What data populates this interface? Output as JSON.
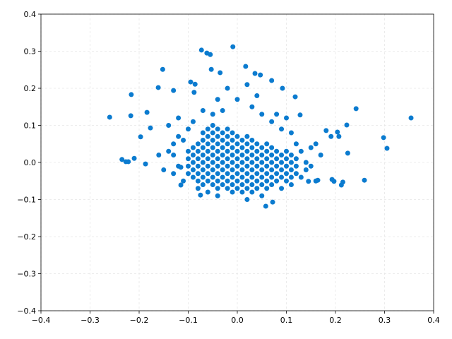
{
  "chart_data": {
    "type": "scatter",
    "color": "#0b7bcf",
    "grid": true,
    "xlim": [
      -0.4,
      0.4
    ],
    "ylim": [
      -0.4,
      0.4
    ],
    "xticks": [
      {
        "value": -0.4,
        "label": "−0.4"
      },
      {
        "value": -0.3,
        "label": "−0.3"
      },
      {
        "value": -0.2,
        "label": "−0.2"
      },
      {
        "value": -0.1,
        "label": "−0.1"
      },
      {
        "value": 0,
        "label": "0.0"
      },
      0.1,
      0.2,
      0.3,
      0.4
    ],
    "yticks": [
      {
        "value": -0.4,
        "label": "−0.4"
      },
      {
        "value": -0.3,
        "label": "−0.3"
      },
      {
        "value": -0.2,
        "label": "−0.2"
      },
      {
        "value": -0.1,
        "label": "−0.1"
      },
      {
        "value": 0,
        "label": "0.0"
      },
      0.1,
      0.2,
      0.3,
      0.4
    ],
    "x": [
      -0.1,
      -0.1,
      -0.1,
      -0.1,
      -0.09,
      -0.09,
      -0.09,
      -0.09,
      -0.09,
      -0.08,
      -0.08,
      -0.08,
      -0.08,
      -0.08,
      -0.08,
      -0.07,
      -0.07,
      -0.07,
      -0.07,
      -0.07,
      -0.07,
      -0.07,
      -0.07,
      -0.06,
      -0.06,
      -0.06,
      -0.06,
      -0.06,
      -0.06,
      -0.06,
      -0.06,
      -0.05,
      -0.05,
      -0.05,
      -0.05,
      -0.05,
      -0.05,
      -0.05,
      -0.05,
      -0.05,
      -0.04,
      -0.04,
      -0.04,
      -0.04,
      -0.04,
      -0.04,
      -0.04,
      -0.04,
      -0.04,
      -0.03,
      -0.03,
      -0.03,
      -0.03,
      -0.03,
      -0.03,
      -0.03,
      -0.03,
      -0.02,
      -0.02,
      -0.02,
      -0.02,
      -0.02,
      -0.02,
      -0.02,
      -0.02,
      -0.02,
      -0.01,
      -0.01,
      -0.01,
      -0.01,
      -0.01,
      -0.01,
      -0.01,
      -0.01,
      -0.01,
      0,
      0,
      0,
      0,
      0,
      0,
      0,
      0,
      0.01,
      0.01,
      0.01,
      0.01,
      0.01,
      0.01,
      0.01,
      0.01,
      0.02,
      0.02,
      0.02,
      0.02,
      0.02,
      0.02,
      0.02,
      0.02,
      0.03,
      0.03,
      0.03,
      0.03,
      0.03,
      0.03,
      0.03,
      0.03,
      0.04,
      0.04,
      0.04,
      0.04,
      0.04,
      0.04,
      0.04,
      0.05,
      0.05,
      0.05,
      0.05,
      0.05,
      0.05,
      0.06,
      0.06,
      0.06,
      0.06,
      0.06,
      0.06,
      0.06,
      0.07,
      0.07,
      0.07,
      0.07,
      0.07,
      0.07,
      0.08,
      0.08,
      0.08,
      0.08,
      0.08,
      0.09,
      0.09,
      0.09,
      0.09,
      0.1,
      0.1,
      0.1,
      0.1,
      0.1,
      0.11,
      0.11,
      0.11,
      0.11,
      0.12,
      0.12,
      0.12,
      -0.13,
      -0.12,
      -0.14,
      -0.15,
      -0.11,
      -0.12,
      -0.13,
      -0.16,
      -0.11,
      -0.13,
      0.13,
      0.14,
      0.15,
      0.16,
      0.14,
      0.13,
      0.15,
      0.17,
      0.12,
      0.11,
      0.09,
      0.1,
      0.07,
      0.05,
      0.03,
      0,
      -0.02,
      0.02,
      -0.04,
      -0.07,
      -0.09,
      -0.1,
      -0.04,
      0.02,
      0.05,
      0.09,
      -0.08,
      0.11,
      -0.06,
      0.08,
      -0.05,
      0.04,
      -0.03,
      0.16,
      -0.14,
      -0.12,
      -0.26,
      0.354,
      -0.009,
      -0.073,
      -0.062,
      -0.055,
      -0.152,
      -0.053,
      0.017,
      0.036,
      0.047,
      -0.035,
      0.07,
      -0.095,
      -0.086,
      -0.161,
      -0.13,
      -0.088,
      -0.216,
      0.092,
      0.118,
      0.242,
      0.298,
      0.305,
      0.259,
      -0.217,
      -0.184,
      0.128,
      0.223,
      0.204,
      0.207,
      0.181,
      0.191,
      0.225,
      -0.235,
      -0.227,
      -0.222,
      -0.21,
      -0.197,
      -0.187,
      -0.177,
      0.058,
      0.072,
      -0.075,
      0.212,
      0.215,
      0.197,
      0.193,
      0.164,
      0.145,
      -0.115,
      -0.115
    ],
    "values": [
      -0.03,
      -0.01,
      0.01,
      0.03,
      -0.04,
      -0.02,
      0,
      0.02,
      0.04,
      -0.05,
      -0.03,
      -0.01,
      0.01,
      0.03,
      0.05,
      -0.06,
      -0.04,
      -0.02,
      0,
      0.02,
      0.04,
      0.06,
      0.08,
      -0.05,
      -0.03,
      -0.01,
      0.01,
      0.03,
      0.05,
      0.07,
      0.09,
      -0.06,
      -0.04,
      -0.02,
      0,
      0.02,
      0.04,
      0.06,
      0.08,
      0.1,
      -0.07,
      -0.05,
      -0.03,
      -0.01,
      0.01,
      0.03,
      0.05,
      0.07,
      0.09,
      -0.06,
      -0.04,
      -0.02,
      0,
      0.02,
      0.04,
      0.06,
      0.08,
      -0.07,
      -0.05,
      -0.03,
      -0.01,
      0.01,
      0.03,
      0.05,
      0.07,
      0.09,
      -0.08,
      -0.06,
      -0.04,
      -0.02,
      0,
      0.02,
      0.04,
      0.06,
      0.08,
      -0.07,
      -0.05,
      -0.03,
      -0.01,
      0.01,
      0.03,
      0.05,
      0.07,
      -0.08,
      -0.06,
      -0.04,
      -0.02,
      0,
      0.02,
      0.04,
      0.06,
      -0.07,
      -0.05,
      -0.03,
      -0.01,
      0.01,
      0.03,
      0.05,
      0.07,
      -0.08,
      -0.06,
      -0.04,
      -0.02,
      0,
      0.02,
      0.04,
      0.06,
      -0.07,
      -0.05,
      -0.03,
      -0.01,
      0.01,
      0.03,
      0.05,
      -0.06,
      -0.04,
      -0.02,
      0,
      0.02,
      0.04,
      -0.07,
      -0.05,
      -0.03,
      -0.01,
      0.01,
      0.03,
      0.05,
      -0.06,
      -0.04,
      -0.02,
      0,
      0.02,
      0.04,
      -0.05,
      -0.03,
      -0.01,
      0.01,
      0.03,
      -0.04,
      -0.02,
      0,
      0.02,
      -0.05,
      -0.03,
      -0.01,
      0.01,
      0.03,
      -0.04,
      -0.02,
      0,
      0.02,
      -0.03,
      -0.01,
      0.01,
      0.02,
      -0.01,
      0.03,
      -0.02,
      0.06,
      0.07,
      0.05,
      0.02,
      -0.05,
      -0.03,
      0.03,
      0,
      0.04,
      0.05,
      -0.02,
      -0.04,
      -0.01,
      0.02,
      0.05,
      0.08,
      0.09,
      0.12,
      0.11,
      0.13,
      0.15,
      0.17,
      0.2,
      0.21,
      0.17,
      0.14,
      0.11,
      0.09,
      -0.09,
      -0.1,
      -0.09,
      -0.07,
      -0.07,
      -0.06,
      -0.08,
      0.13,
      0.13,
      0.18,
      0.14,
      -0.05,
      0.1,
      0.12,
      0.122,
      0.12,
      0.312,
      0.303,
      0.295,
      0.291,
      0.251,
      0.251,
      0.259,
      0.24,
      0.236,
      0.242,
      0.221,
      0.217,
      0.211,
      0.202,
      0.194,
      0.189,
      0.183,
      0.2,
      0.177,
      0.145,
      0.067,
      0.038,
      -0.048,
      0.126,
      0.135,
      0.128,
      0.101,
      0.082,
      0.07,
      0.086,
      0.07,
      0.025,
      0.008,
      0.002,
      0.002,
      0.011,
      0.069,
      -0.004,
      0.093,
      -0.118,
      -0.107,
      -0.088,
      -0.061,
      -0.053,
      -0.051,
      -0.046,
      -0.048,
      -0.051,
      -0.061,
      -0.013
    ]
  }
}
